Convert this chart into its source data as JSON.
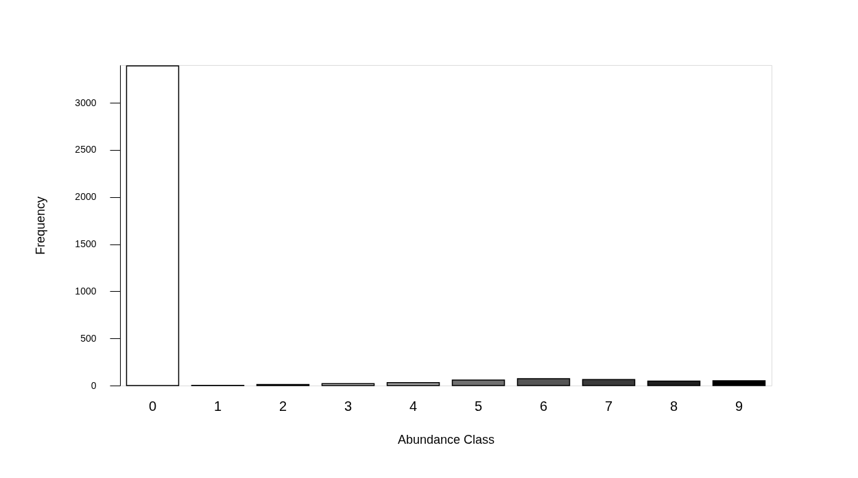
{
  "chart_data": {
    "type": "bar",
    "xlabel": "Abundance Class",
    "ylabel": "Frequency",
    "categories": [
      "0",
      "1",
      "2",
      "3",
      "4",
      "5",
      "6",
      "7",
      "8",
      "9"
    ],
    "values": [
      3391,
      2,
      10,
      20,
      31,
      58,
      72,
      63,
      48,
      50
    ],
    "colors": [
      "#ffffff",
      "#f0f0f0",
      "#d9d9d9",
      "#c0c0c0",
      "#a0a0a0",
      "#707070",
      "#555555",
      "#3a3a3a",
      "#202020",
      "#000000"
    ],
    "ylim": [
      0,
      3400
    ],
    "yticks": [
      0,
      500,
      1000,
      1500,
      2000,
      2500,
      3000
    ],
    "grid": false
  }
}
